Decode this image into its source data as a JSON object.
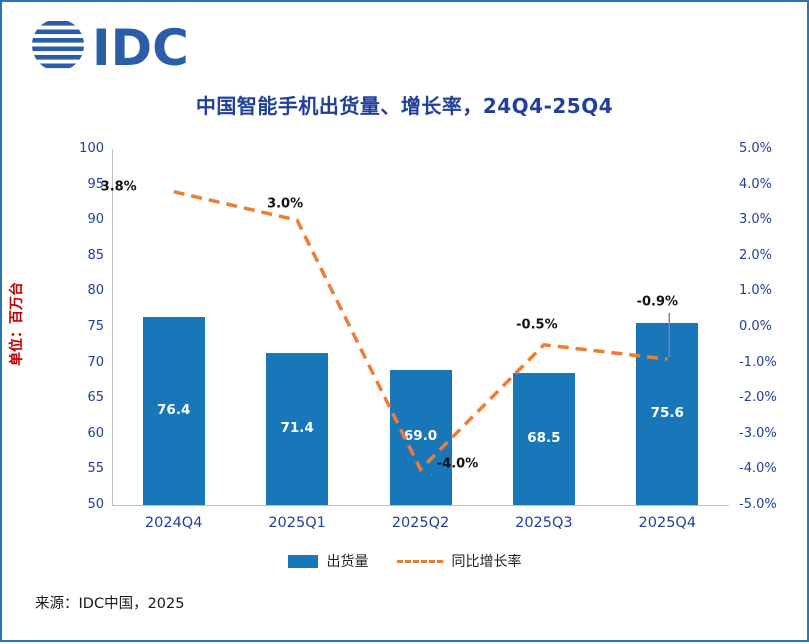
{
  "logo": {
    "text": "IDC"
  },
  "chart_data": {
    "type": "bar+line",
    "title": "中国智能手机出货量、增长率，24Q4-25Q4",
    "ylabel_left": "单位：百万台",
    "categories": [
      "2024Q4",
      "2025Q1",
      "2025Q2",
      "2025Q3",
      "2025Q4"
    ],
    "series": [
      {
        "name": "出货量",
        "type": "bar",
        "axis": "left",
        "values": [
          76.4,
          71.4,
          69.0,
          68.5,
          75.6
        ],
        "labels": [
          "76.4",
          "71.4",
          "69.0",
          "68.5",
          "75.6"
        ]
      },
      {
        "name": "同比增长率",
        "type": "line",
        "axis": "right",
        "values": [
          3.8,
          3.0,
          -4.0,
          -0.5,
          -0.9
        ],
        "labels": [
          "3.8%",
          "3.0%",
          "-4.0%",
          "-0.5%",
          "-0.9%"
        ]
      }
    ],
    "axis_left": {
      "min": 50,
      "max": 100,
      "step": 5,
      "ticks": [
        "100",
        "95",
        "90",
        "85",
        "80",
        "75",
        "70",
        "65",
        "60",
        "55",
        "50"
      ]
    },
    "axis_right": {
      "min": -5,
      "max": 5,
      "step": 1,
      "ticks": [
        "5.0%",
        "4.0%",
        "3.0%",
        "2.0%",
        "1.0%",
        "0.0%",
        "-1.0%",
        "-2.0%",
        "-3.0%",
        "-4.0%",
        "-5.0%"
      ]
    },
    "grid": false,
    "legend_position": "bottom"
  },
  "source_text": "来源：IDC中国，2025",
  "colors": {
    "bar": "#1877B8",
    "line": "#ED7D31",
    "navy": "#21409A",
    "unit_red": "#C00000",
    "frame": "#2E74B5",
    "axis_gray": "#BFBFBF",
    "leader": "#7B7BC8"
  }
}
